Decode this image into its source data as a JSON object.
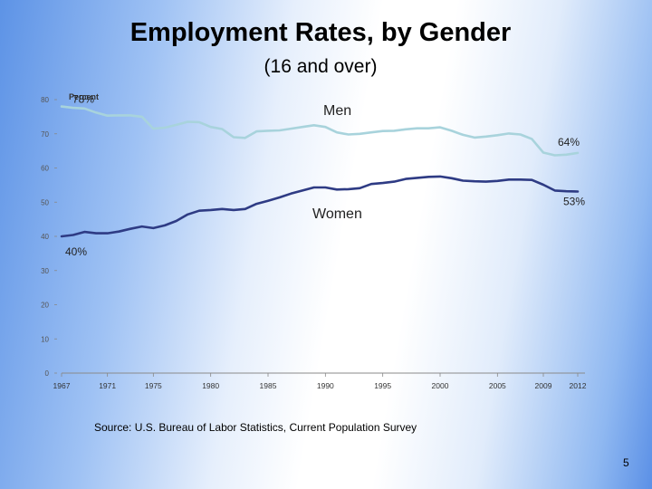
{
  "slide": {
    "title": "Employment Rates, by Gender",
    "subtitle": "(16 and over)",
    "source": "Source: U.S. Bureau of Labor Statistics, Current Population Survey",
    "page_number": "5"
  },
  "chart_data": {
    "type": "line",
    "title": "Employment Rates, by Gender",
    "subtitle": "(16 and over)",
    "xlabel": "",
    "ylabel": "Percent",
    "xlim": [
      1967,
      2012
    ],
    "ylim": [
      0,
      80
    ],
    "yticks": [
      0,
      10,
      20,
      30,
      40,
      50,
      60,
      70,
      80
    ],
    "xticks": [
      1967,
      1971,
      1975,
      1980,
      1985,
      1990,
      1995,
      2000,
      2005,
      2009,
      2012
    ],
    "grid": false,
    "legend": "inline labels",
    "x": [
      1967,
      1968,
      1969,
      1970,
      1971,
      1972,
      1973,
      1974,
      1975,
      1976,
      1977,
      1978,
      1979,
      1980,
      1981,
      1982,
      1983,
      1984,
      1985,
      1986,
      1987,
      1988,
      1989,
      1990,
      1991,
      1992,
      1993,
      1994,
      1995,
      1996,
      1997,
      1998,
      1999,
      2000,
      2001,
      2002,
      2003,
      2004,
      2005,
      2006,
      2007,
      2008,
      2009,
      2010,
      2011,
      2012
    ],
    "series": [
      {
        "name": "Men",
        "color": "#a8d3dc",
        "values": [
          78.0,
          77.6,
          77.4,
          76.2,
          75.3,
          75.4,
          75.4,
          75.0,
          71.5,
          71.8,
          72.6,
          73.5,
          73.4,
          72.0,
          71.4,
          69.0,
          68.8,
          70.7,
          70.9,
          71.0,
          71.5,
          72.0,
          72.5,
          72.0,
          70.4,
          69.8,
          70.0,
          70.4,
          70.8,
          70.9,
          71.3,
          71.6,
          71.6,
          71.9,
          70.9,
          69.7,
          68.9,
          69.2,
          69.6,
          70.1,
          69.8,
          68.5,
          64.5,
          63.7,
          63.9,
          64.4
        ]
      },
      {
        "name": "Women",
        "color": "#2e3b84",
        "values": [
          40.0,
          40.4,
          41.3,
          40.9,
          40.9,
          41.4,
          42.2,
          42.9,
          42.4,
          43.2,
          44.5,
          46.4,
          47.5,
          47.7,
          48.0,
          47.7,
          48.0,
          49.5,
          50.4,
          51.4,
          52.5,
          53.4,
          54.3,
          54.3,
          53.7,
          53.8,
          54.1,
          55.3,
          55.6,
          56.0,
          56.8,
          57.1,
          57.4,
          57.5,
          57.0,
          56.3,
          56.1,
          56.0,
          56.2,
          56.6,
          56.6,
          56.5,
          55.1,
          53.4,
          53.2,
          53.1
        ]
      }
    ],
    "annotations": [
      {
        "text": "78%",
        "x": 1967,
        "y": 78.0
      },
      {
        "text": "Men",
        "x": 1991,
        "y": 72.0
      },
      {
        "text": "64%",
        "x": 2012,
        "y": 64.4
      },
      {
        "text": "53%",
        "x": 2012,
        "y": 53.1
      },
      {
        "text": "Women",
        "x": 1991,
        "y": 54.3
      },
      {
        "text": "40%",
        "x": 1967,
        "y": 40.0
      }
    ]
  }
}
